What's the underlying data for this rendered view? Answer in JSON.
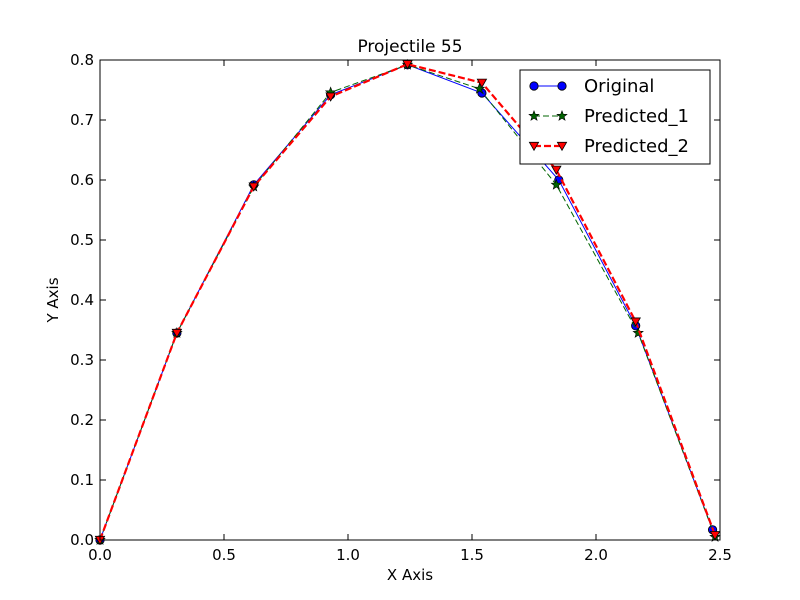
{
  "chart_data": {
    "type": "line",
    "title": "Projectile 55",
    "xlabel": "X Axis",
    "ylabel": "Y Axis",
    "xlim": [
      0,
      2.5
    ],
    "ylim": [
      0,
      0.8
    ],
    "xticks": [
      "0.0",
      "0.5",
      "1.0",
      "1.5",
      "2.0",
      "2.5"
    ],
    "yticks": [
      "0.0",
      "0.1",
      "0.2",
      "0.3",
      "0.4",
      "0.5",
      "0.6",
      "0.7",
      "0.8"
    ],
    "grid": false,
    "legend_position": "top-right",
    "series": [
      {
        "name": "Original",
        "color": "#0000ff",
        "marker": "circle",
        "line_style": "solid",
        "x": [
          0.0,
          0.31,
          0.62,
          0.93,
          1.24,
          1.54,
          1.85,
          2.16,
          2.47
        ],
        "y": [
          0.0,
          0.345,
          0.592,
          0.742,
          0.792,
          0.745,
          0.6,
          0.357,
          0.017
        ]
      },
      {
        "name": "Predicted_1",
        "color": "#006400",
        "marker": "star",
        "line_style": "dashed",
        "x": [
          0.0,
          0.31,
          0.62,
          0.93,
          1.24,
          1.53,
          1.84,
          2.17,
          2.48
        ],
        "y": [
          0.0,
          0.345,
          0.589,
          0.746,
          0.792,
          0.752,
          0.592,
          0.345,
          0.005
        ]
      },
      {
        "name": "Predicted_2",
        "color": "#ff0000",
        "marker": "triangle-down",
        "line_style": "dashed",
        "x": [
          0.0,
          0.31,
          0.62,
          0.93,
          1.24,
          1.54,
          1.84,
          2.16,
          2.48
        ],
        "y": [
          0.0,
          0.345,
          0.589,
          0.739,
          0.793,
          0.762,
          0.617,
          0.364,
          0.008
        ]
      }
    ]
  }
}
